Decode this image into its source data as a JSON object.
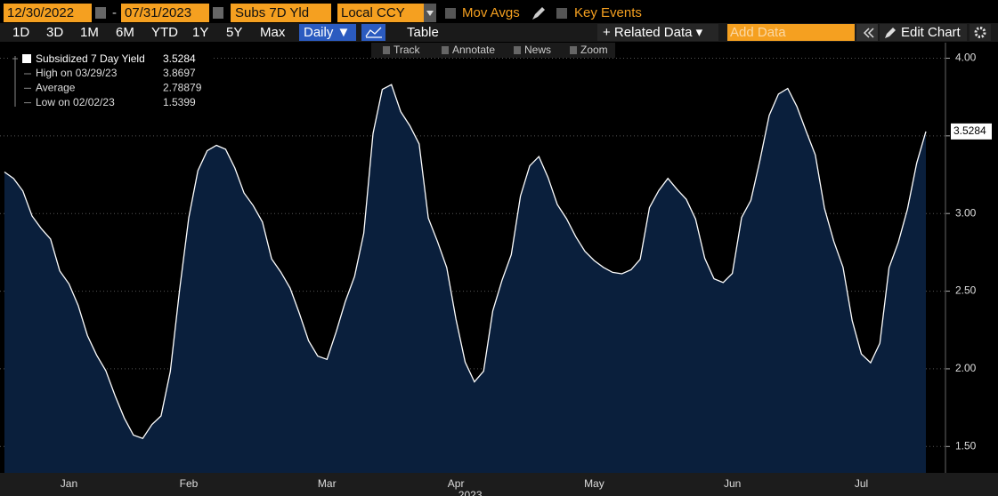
{
  "toolbar": {
    "start_date": "12/30/2022",
    "dash": "-",
    "end_date": "07/31/2023",
    "field": "Subs 7D Yld",
    "currency": "Local CCY",
    "mov_avgs": "Mov Avgs",
    "key_events": "Key Events"
  },
  "range_buttons": [
    "1D",
    "3D",
    "1M",
    "6M",
    "YTD",
    "1Y",
    "5Y",
    "Max"
  ],
  "controls": {
    "frequency": "Daily ▼",
    "table": "Table",
    "related_data": "+ Related Data ▾",
    "add_data": "Add Data",
    "edit_chart": "Edit Chart"
  },
  "chart_tools": [
    "Track",
    "Annotate",
    "News",
    "Zoom"
  ],
  "chart_data": {
    "type": "area",
    "categories": [
      null,
      null,
      null,
      null,
      null,
      null,
      null,
      "Jan",
      null,
      null,
      null,
      null,
      null,
      null,
      null,
      null,
      null,
      null,
      null,
      null,
      "Feb",
      null,
      null,
      null,
      null,
      null,
      null,
      null,
      null,
      null,
      null,
      null,
      null,
      null,
      null,
      "Mar",
      null,
      null,
      null,
      null,
      null,
      null,
      null,
      null,
      null,
      null,
      null,
      null,
      null,
      "Apr",
      null,
      null,
      null,
      null,
      null,
      null,
      null,
      null,
      null,
      null,
      null,
      null,
      null,
      null,
      "May",
      null,
      null,
      null,
      null,
      null,
      null,
      null,
      null,
      null,
      null,
      null,
      null,
      null,
      null,
      "Jun",
      null,
      null,
      null,
      null,
      null,
      null,
      null,
      null,
      null,
      null,
      null,
      null,
      null,
      "Jul",
      null,
      null,
      null,
      null,
      null,
      null,
      null
    ],
    "series": [
      {
        "name": "Subsidized 7 Day Yield",
        "color": "#ffffff",
        "fill": "#0a1f3c",
        "values": [
          3.267,
          3.225,
          3.145,
          2.984,
          2.903,
          2.835,
          2.631,
          2.547,
          2.408,
          2.214,
          2.089,
          1.989,
          1.828,
          1.683,
          1.573,
          1.552,
          1.641,
          1.697,
          1.983,
          2.507,
          2.972,
          3.276,
          3.404,
          3.439,
          3.414,
          3.293,
          3.132,
          3.051,
          2.945,
          2.708,
          2.622,
          2.519,
          2.358,
          2.181,
          2.082,
          2.061,
          2.238,
          2.434,
          2.596,
          2.873,
          3.515,
          3.799,
          3.83,
          3.656,
          3.565,
          3.448,
          2.97,
          2.82,
          2.652,
          2.322,
          2.043,
          1.916,
          1.985,
          2.373,
          2.57,
          2.735,
          3.112,
          3.307,
          3.367,
          3.232,
          3.058,
          2.966,
          2.851,
          2.757,
          2.697,
          2.653,
          2.621,
          2.612,
          2.638,
          2.705,
          3.038,
          3.147,
          3.226,
          3.155,
          3.091,
          2.964,
          2.712,
          2.58,
          2.556,
          2.614,
          2.974,
          3.085,
          3.345,
          3.632,
          3.769,
          3.805,
          3.689,
          3.53,
          3.377,
          3.034,
          2.822,
          2.655,
          2.311,
          2.096,
          2.039,
          2.165,
          2.651,
          2.814,
          3.028,
          3.325,
          3.528
        ]
      }
    ],
    "ylim": [
      1.33,
      4.1
    ],
    "yticks": [
      {
        "value": 1.5,
        "label": "1.50"
      },
      {
        "value": 2,
        "label": "2.00"
      },
      {
        "value": 2.5,
        "label": "2.50"
      },
      {
        "value": 3,
        "label": "3.00"
      },
      {
        "value": 3.5,
        "label": "3.50"
      },
      {
        "value": 4,
        "label": "4.00"
      }
    ],
    "grid": true,
    "year_label": "2023",
    "stats": [
      {
        "label": "High on 03/29/23",
        "value": 3.8697
      },
      {
        "label": "Average",
        "value": 2.78879
      },
      {
        "label": "Low on 02/02/23",
        "value": 1.5399
      }
    ],
    "last_value": 3.5284
  }
}
